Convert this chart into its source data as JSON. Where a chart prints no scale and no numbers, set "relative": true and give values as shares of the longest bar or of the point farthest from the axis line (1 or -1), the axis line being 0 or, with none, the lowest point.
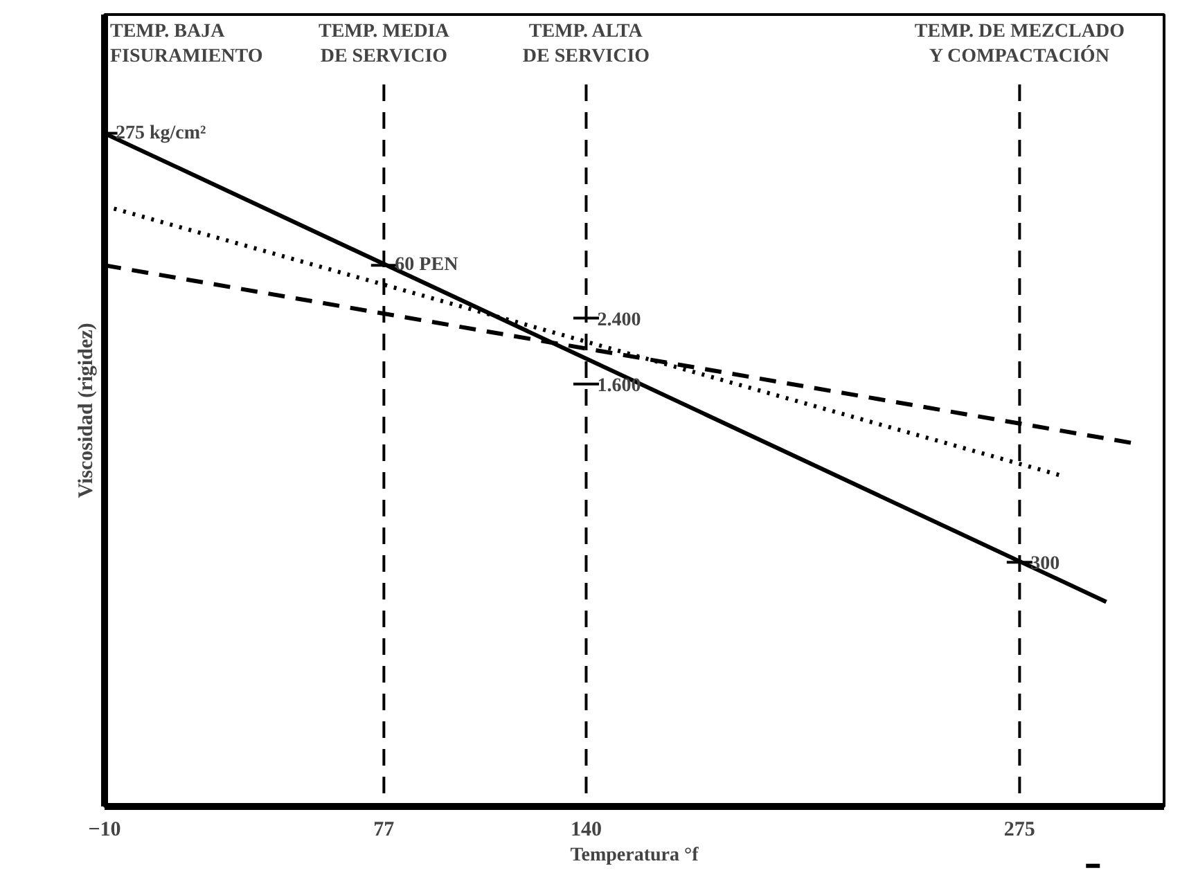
{
  "chart_data": {
    "type": "line",
    "relative": true,
    "xlabel": "Temperatura °f",
    "ylabel": "Viscosidad (rigidez)",
    "xlim": [
      -10,
      320
    ],
    "xticks": [
      -10,
      77,
      140,
      275
    ],
    "tick_labels": "x",
    "grid": false,
    "series": [
      {
        "color": "#000000",
        "line_style": "solid",
        "x": [
          -10,
          302
        ],
        "values": [
          1.0,
          0.29
        ]
      },
      {
        "color": "#000000",
        "line_style": "dotted",
        "x": [
          -10,
          289
        ],
        "values": [
          0.89,
          0.48
        ]
      },
      {
        "color": "#000000",
        "line_style": "dashed",
        "x": [
          -10,
          311
        ],
        "values": [
          0.8,
          0.53
        ]
      }
    ],
    "ref_lines": [
      {
        "axis": "x",
        "value": -10,
        "label": "TEMP. BAJA\nFISURAMIENTO",
        "line_style": "solid",
        "color": "#000000"
      },
      {
        "axis": "x",
        "value": 77,
        "label": "TEMP. MEDIA\nDE SERVICIO",
        "line_style": "dashed",
        "color": "#000000"
      },
      {
        "axis": "x",
        "value": 140,
        "label": "TEMP. ALTA\nDE SERVICIO",
        "line_style": "dashed",
        "color": "#000000"
      },
      {
        "axis": "x",
        "value": 275,
        "label": "TEMP. DE MEZCLADO\nY COMPACTACIÓN",
        "line_style": "dashed",
        "color": "#000000"
      }
    ],
    "annotations": [
      {
        "text": "275 kg/cm²",
        "x": -10,
        "y": 1.0
      },
      {
        "text": "60 PEN",
        "x": 77,
        "y": 0.8
      },
      {
        "text": "2.400",
        "x": 140,
        "y": 0.72
      },
      {
        "text": "1.600",
        "x": 140,
        "y": 0.62
      },
      {
        "text": "300",
        "x": 275,
        "y": 0.35
      }
    ]
  }
}
